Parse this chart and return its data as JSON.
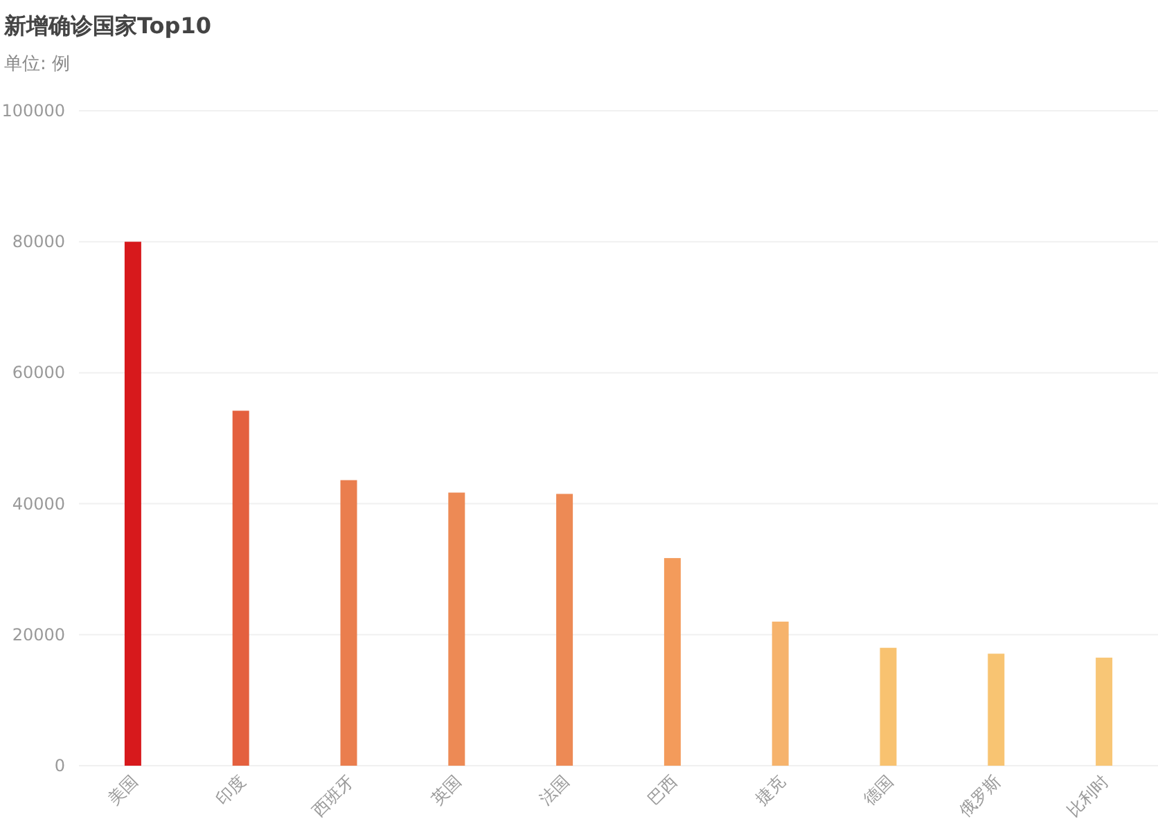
{
  "chart_data": {
    "type": "bar",
    "title": "新增确诊国家Top10",
    "subtitle": "单位: 例",
    "categories": [
      "美国",
      "印度",
      "西班牙",
      "英国",
      "法国",
      "巴西",
      "捷克",
      "德国",
      "俄罗斯",
      "比利时"
    ],
    "values": [
      80000,
      54200,
      43600,
      41700,
      41500,
      31700,
      22000,
      18000,
      17100,
      16500
    ],
    "colors": [
      "#d7191c",
      "#e4603e",
      "#ea7e4e",
      "#ed8a55",
      "#ed8a55",
      "#f39b5b",
      "#f6b36c",
      "#f8c270",
      "#f8c472",
      "#f8c676"
    ],
    "ylim": [
      0,
      100000
    ],
    "yticks": [
      0,
      20000,
      40000,
      60000,
      80000,
      100000
    ],
    "grid": "y"
  }
}
